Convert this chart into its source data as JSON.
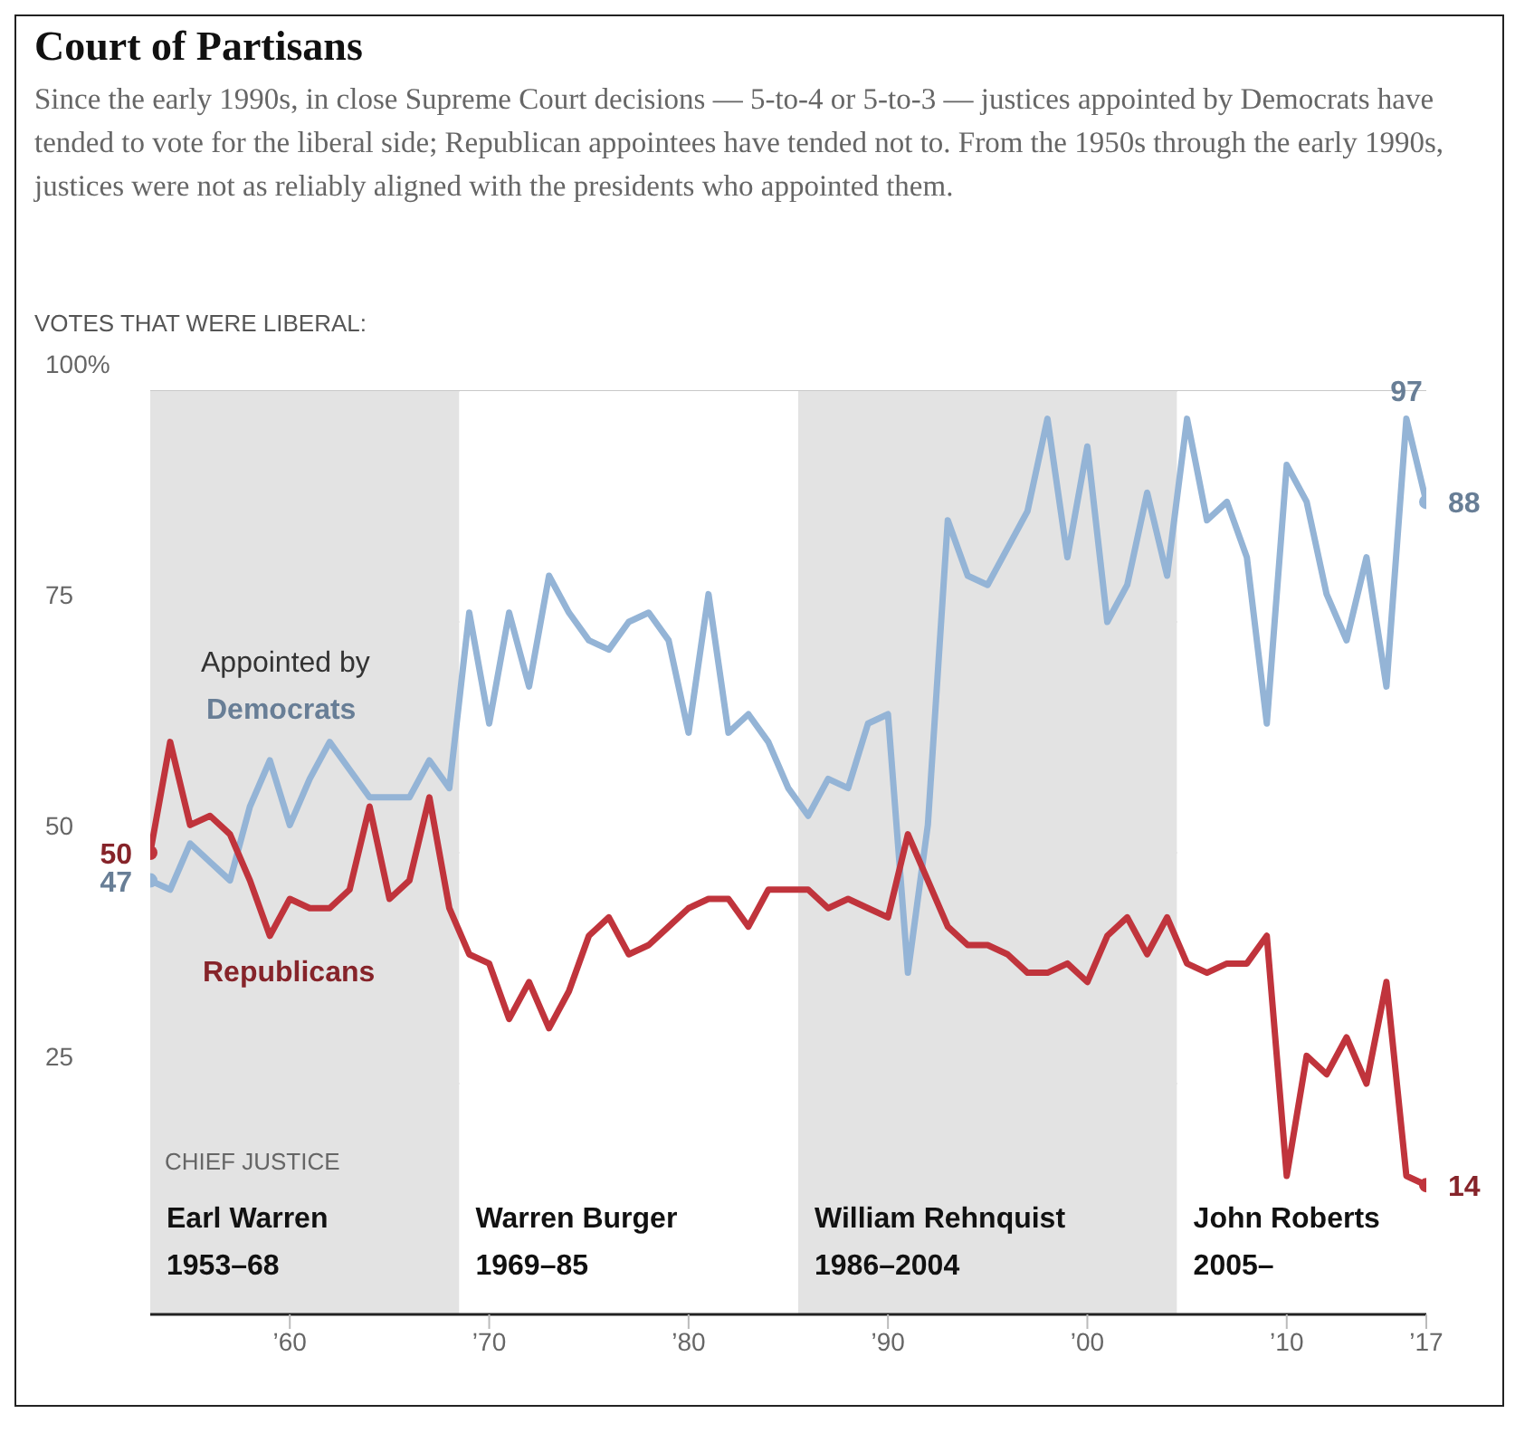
{
  "chart_data": {
    "type": "line",
    "title": "Court of Partisans",
    "subtitle": "Since the early 1990s, in close Supreme Court decisions — 5-to-4 or 5-to-3 — justices appointed by Democrats have tended to vote for the liberal side; Republican appointees have tended not to. From the 1950s through the early 1990s, justices were not as reliably aligned with the presidents who appointed them.",
    "ylabel": "VOTES THAT WERE LIBERAL:",
    "annotations": [
      "Appointed by",
      "CHIEF JUSTICE"
    ],
    "x": [
      1953,
      1954,
      1955,
      1956,
      1957,
      1958,
      1959,
      1960,
      1961,
      1962,
      1963,
      1964,
      1965,
      1966,
      1967,
      1968,
      1969,
      1970,
      1971,
      1972,
      1973,
      1974,
      1975,
      1976,
      1977,
      1978,
      1979,
      1980,
      1981,
      1982,
      1983,
      1984,
      1985,
      1986,
      1987,
      1988,
      1989,
      1990,
      1991,
      1992,
      1993,
      1994,
      1995,
      1996,
      1997,
      1998,
      1999,
      2000,
      2001,
      2002,
      2003,
      2004,
      2005,
      2006,
      2007,
      2008,
      2009,
      2010,
      2011,
      2012,
      2013,
      2014,
      2015,
      2016,
      2017
    ],
    "series": [
      {
        "name": "Democrats",
        "color": "#94b4d6",
        "values": [
          47,
          46,
          51,
          49,
          47,
          55,
          60,
          53,
          58,
          62,
          59,
          56,
          56,
          56,
          60,
          57,
          76,
          64,
          76,
          68,
          80,
          76,
          73,
          72,
          75,
          76,
          73,
          63,
          78,
          63,
          65,
          62,
          57,
          54,
          58,
          57,
          64,
          65,
          37,
          53,
          86,
          80,
          79,
          83,
          87,
          97,
          82,
          94,
          75,
          79,
          89,
          80,
          97,
          86,
          88,
          82,
          64,
          92,
          88,
          78,
          73,
          82,
          68,
          97,
          88
        ],
        "value_labels": [
          "47",
          null,
          null,
          null,
          null,
          null,
          null,
          null,
          null,
          null,
          null,
          null,
          null,
          null,
          null,
          null,
          null,
          null,
          null,
          null,
          null,
          null,
          null,
          null,
          null,
          null,
          null,
          null,
          null,
          null,
          null,
          null,
          null,
          null,
          null,
          null,
          null,
          null,
          null,
          null,
          null,
          null,
          null,
          null,
          null,
          null,
          null,
          null,
          null,
          null,
          null,
          null,
          null,
          null,
          null,
          null,
          null,
          null,
          null,
          null,
          null,
          null,
          null,
          "97",
          "88"
        ]
      },
      {
        "name": "Republicans",
        "color": "#c0343c",
        "values": [
          50,
          62,
          53,
          54,
          52,
          47,
          41,
          45,
          44,
          44,
          46,
          55,
          45,
          47,
          56,
          44,
          39,
          38,
          32,
          36,
          31,
          35,
          41,
          43,
          39,
          40,
          42,
          44,
          45,
          45,
          42,
          46,
          46,
          46,
          44,
          45,
          44,
          43,
          52,
          47,
          42,
          40,
          40,
          39,
          37,
          37,
          38,
          36,
          41,
          43,
          39,
          43,
          38,
          37,
          38,
          38,
          41,
          15,
          28,
          26,
          30,
          25,
          36,
          15,
          14
        ],
        "value_labels": [
          "50",
          null,
          null,
          null,
          null,
          null,
          null,
          null,
          null,
          null,
          null,
          null,
          null,
          null,
          null,
          null,
          null,
          null,
          null,
          null,
          null,
          null,
          null,
          null,
          null,
          null,
          null,
          null,
          null,
          null,
          null,
          null,
          null,
          null,
          null,
          null,
          null,
          null,
          null,
          null,
          null,
          null,
          null,
          null,
          null,
          null,
          null,
          null,
          null,
          null,
          null,
          null,
          null,
          null,
          null,
          null,
          null,
          null,
          null,
          null,
          null,
          null,
          null,
          null,
          "14"
        ]
      }
    ],
    "xlim": [
      1953,
      2017
    ],
    "xticks": [
      {
        "value": 1960,
        "label": "’60"
      },
      {
        "value": 1970,
        "label": "’70"
      },
      {
        "value": 1980,
        "label": "’80"
      },
      {
        "value": 1990,
        "label": "’90"
      },
      {
        "value": 2000,
        "label": "’00"
      },
      {
        "value": 2010,
        "label": "’10"
      },
      {
        "value": 2017,
        "label": "’17"
      }
    ],
    "ylim": [
      0,
      100
    ],
    "yticks": [
      {
        "value": 25,
        "label": "25"
      },
      {
        "value": 50,
        "label": "50"
      },
      {
        "value": 75,
        "label": "75"
      },
      {
        "value": 100,
        "label": "100%"
      }
    ],
    "bands": [
      {
        "axis": "x",
        "from": 1953,
        "to": 1968.5,
        "label": "Earl Warren 1953–68",
        "color": "#e3e3e3"
      },
      {
        "axis": "x",
        "from": 1968.5,
        "to": 1985.5,
        "label": "Warren Burger 1969–85",
        "color": "#ffffff"
      },
      {
        "axis": "x",
        "from": 1985.5,
        "to": 2004.5,
        "label": "William Rehnquist 1986–2004",
        "color": "#e3e3e3"
      },
      {
        "axis": "x",
        "from": 2004.5,
        "to": 2017,
        "label": "John Roberts 2005–",
        "color": "#ffffff"
      }
    ],
    "grid": "y",
    "legend": false,
    "line_style": "solid"
  }
}
